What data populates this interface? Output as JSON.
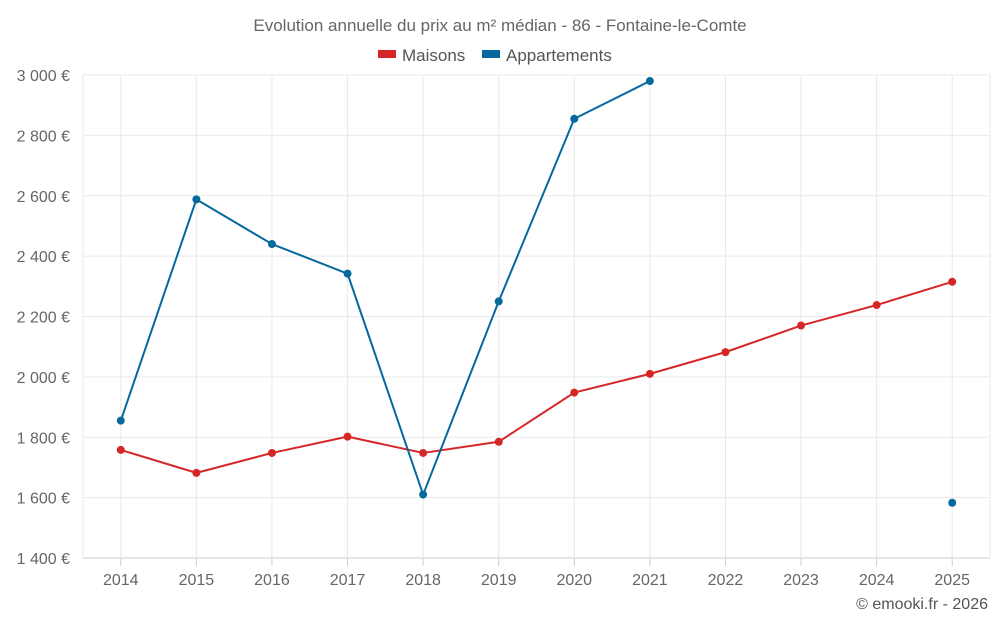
{
  "chart_data": {
    "type": "line",
    "title": "Evolution annuelle du prix au m² médian - 86 - Fontaine-le-Comte",
    "categories": [
      "2014",
      "2015",
      "2016",
      "2017",
      "2018",
      "2019",
      "2020",
      "2021",
      "2022",
      "2023",
      "2024",
      "2025"
    ],
    "y_tick_labels": [
      "1 400 €",
      "1 600 €",
      "1 800 €",
      "2 000 €",
      "2 200 €",
      "2 400 €",
      "2 600 €",
      "2 800 €",
      "3 000 €"
    ],
    "y_ticks": [
      1400,
      1600,
      1800,
      2000,
      2200,
      2400,
      2600,
      2800,
      3000
    ],
    "ylim": [
      1400,
      3000
    ],
    "grid": true,
    "legend_position": "top-center",
    "series": [
      {
        "name": "Maisons",
        "color": "#d62728",
        "values": [
          1758,
          1682,
          1748,
          1802,
          1748,
          1785,
          1948,
          2010,
          2082,
          2170,
          2238,
          2315
        ]
      },
      {
        "name": "Appartements",
        "color": "#06699d",
        "values": [
          1855,
          2588,
          2440,
          2342,
          1610,
          2250,
          2855,
          2980,
          null,
          null,
          null,
          1583
        ]
      }
    ],
    "credit": "© emooki.fr - 2026"
  }
}
